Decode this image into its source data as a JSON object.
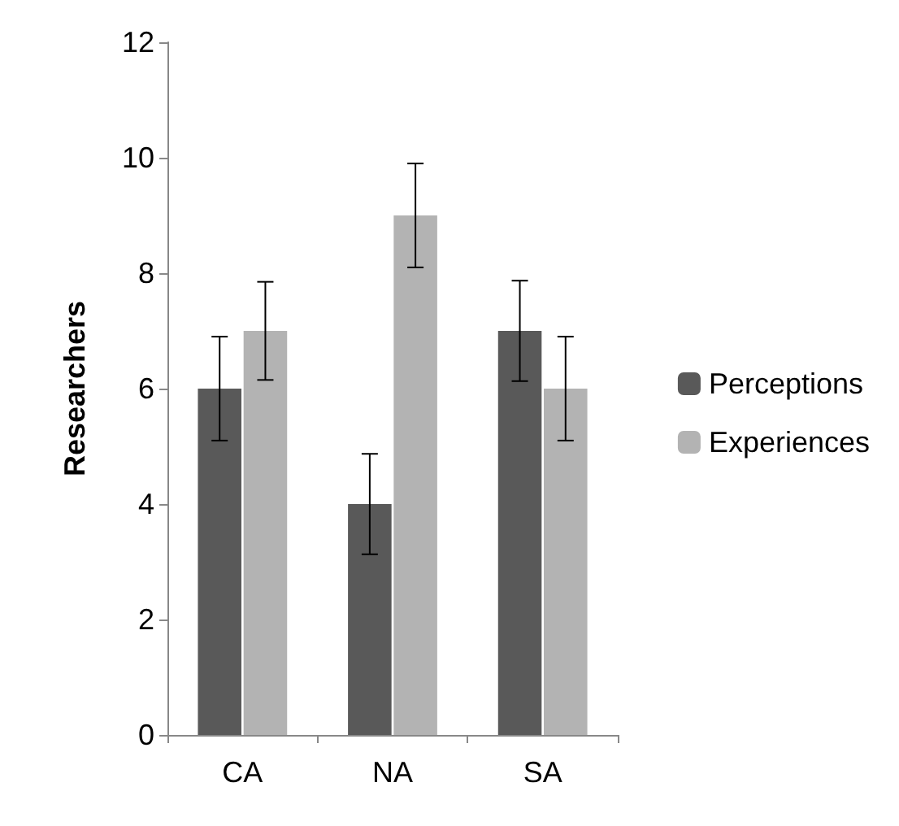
{
  "chart_data": {
    "type": "bar",
    "ylabel": "Researchers",
    "categories": [
      "CA",
      "NA",
      "SA"
    ],
    "series": [
      {
        "name": "Perceptions",
        "color": "#595959",
        "values": [
          6,
          4,
          7
        ],
        "errors": [
          0.9,
          0.87,
          0.87
        ]
      },
      {
        "name": "Experiences",
        "color": "#b3b3b3",
        "values": [
          7,
          9,
          6
        ],
        "errors": [
          0.85,
          0.9,
          0.9
        ]
      }
    ],
    "ylim": [
      0,
      12
    ],
    "yticks": [
      0,
      2,
      4,
      6,
      8,
      10,
      12
    ],
    "grid": false,
    "legend": "right"
  }
}
